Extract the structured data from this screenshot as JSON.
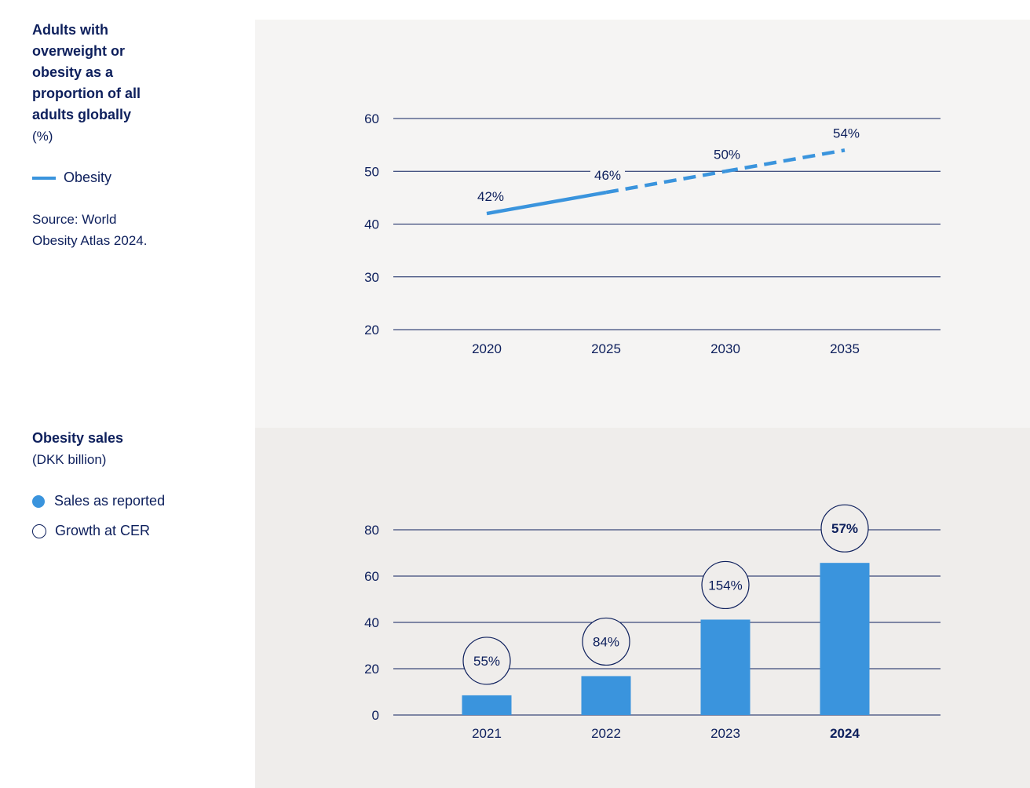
{
  "colors": {
    "navy": "#0d1f5c",
    "blue": "#3a94dd",
    "panel_top": "#f5f4f3",
    "panel_bottom": "#efedeb"
  },
  "top": {
    "title": "Adults with overweight or obesity as a proportion of all adults globally",
    "title_lines": [
      "Adults with",
      "overweight or",
      "obesity as a",
      "proportion of all",
      "adults globally"
    ],
    "unit": "(%)",
    "legend": {
      "icon": "line-swatch",
      "label": "Obesity"
    },
    "source_lines": [
      "Source: World",
      "Obesity Atlas 2024."
    ]
  },
  "bottom": {
    "title": "Obesity sales",
    "unit": "(DKK billion)",
    "legend": [
      {
        "icon": "filled-circle",
        "label": "Sales as reported"
      },
      {
        "icon": "open-circle",
        "label": "Growth at CER"
      }
    ]
  },
  "chart_data": [
    {
      "type": "line",
      "x": [
        "2020",
        "2025",
        "2030",
        "2035"
      ],
      "series": [
        {
          "name": "Obesity",
          "values": [
            42,
            46,
            50,
            54
          ],
          "labels": [
            "42%",
            "46%",
            "50%",
            "54%"
          ],
          "style": [
            "solid",
            "dashed",
            "dashed"
          ]
        }
      ],
      "ylim": [
        20,
        60
      ],
      "yticks": [
        20,
        30,
        40,
        50,
        60
      ],
      "grid": true
    },
    {
      "type": "bar",
      "categories": [
        "2021",
        "2022",
        "2023",
        "2024"
      ],
      "series": [
        {
          "name": "Sales as reported",
          "values": [
            8.5,
            16.8,
            41.2,
            65.7
          ]
        },
        {
          "name": "Growth at CER",
          "values": [
            "55%",
            "84%",
            "154%",
            "57%"
          ]
        }
      ],
      "highlight_category": "2024",
      "ylim": [
        0,
        80
      ],
      "yticks": [
        0,
        20,
        40,
        60,
        80
      ],
      "grid": true
    }
  ]
}
